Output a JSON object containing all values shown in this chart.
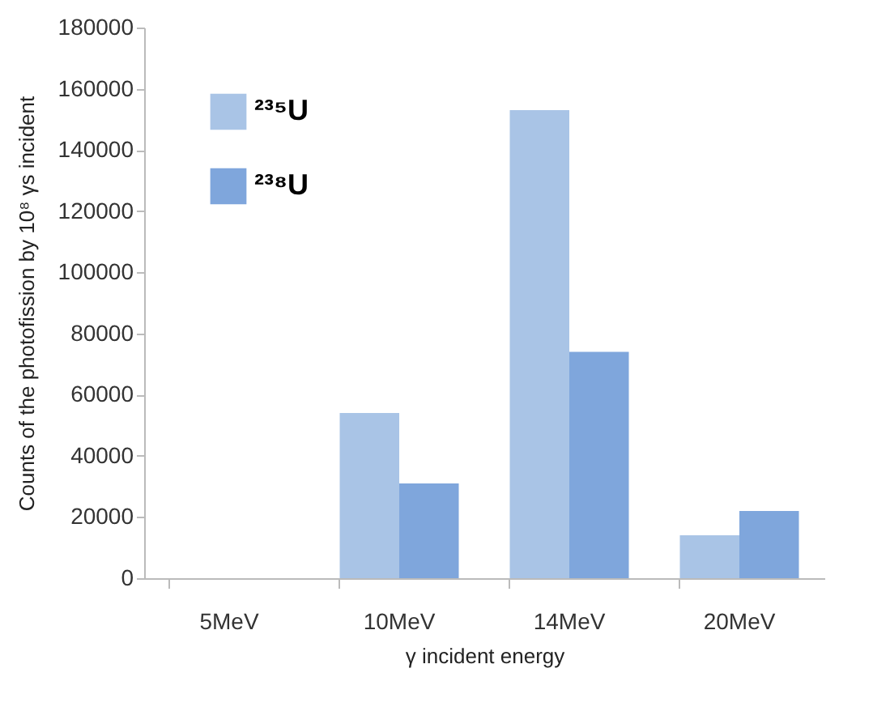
{
  "chart_data": {
    "type": "bar",
    "xlabel": "γ incident energy",
    "ylabel": "Counts of the photofission by 10⁸ γs incident",
    "categories": [
      "5MeV",
      "10MeV",
      "14MeV",
      "20MeV"
    ],
    "series": [
      {
        "name": "²³⁵U",
        "color": "#a9c4e6",
        "values": [
          0,
          54000,
          153000,
          14000
        ]
      },
      {
        "name": "²³⁸U",
        "color": "#7fa6dc",
        "values": [
          0,
          31000,
          74000,
          22000
        ]
      }
    ],
    "ylim": [
      0,
      180000
    ],
    "yticks": [
      0,
      20000,
      40000,
      60000,
      80000,
      100000,
      120000,
      140000,
      160000,
      180000
    ],
    "grid": false,
    "legend": "top left"
  }
}
